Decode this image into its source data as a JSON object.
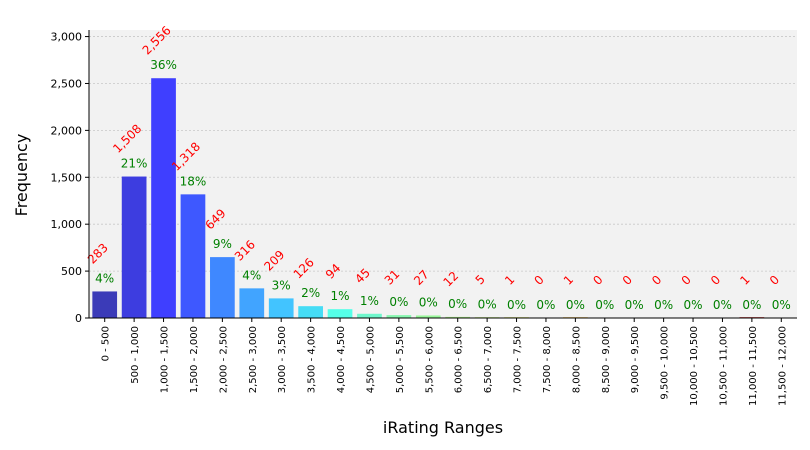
{
  "chart_data": {
    "type": "bar",
    "xlabel": "iRating Ranges",
    "ylabel": "Frequency",
    "ylim": [
      0,
      3070
    ],
    "yticks": [
      0,
      500,
      1000,
      1500,
      2000,
      2500,
      3000
    ],
    "ytick_labels": [
      "0",
      "500",
      "1,000",
      "1,500",
      "2,000",
      "2,500",
      "3,000"
    ],
    "grid": true,
    "categories": [
      "0 - 500",
      "500 - 1,000",
      "1,000 - 1,500",
      "1,500 - 2,000",
      "2,000 - 2,500",
      "2,500 - 3,000",
      "3,000 - 3,500",
      "3,500 - 4,000",
      "4,000 - 4,500",
      "4,500 - 5,000",
      "5,000 - 5,500",
      "5,500 - 6,000",
      "6,000 - 6,500",
      "6,500 - 7,000",
      "7,000 - 7,500",
      "7,500 - 8,000",
      "8,000 - 8,500",
      "8,500 - 9,000",
      "9,000 - 9,500",
      "9,500 - 10,000",
      "10,000 - 10,500",
      "10,500 - 11,000",
      "11,000 - 11,500",
      "11,500 - 12,000"
    ],
    "values": [
      283,
      1508,
      2556,
      1318,
      649,
      316,
      209,
      126,
      94,
      45,
      31,
      27,
      12,
      5,
      1,
      0,
      1,
      0,
      0,
      0,
      0,
      0,
      1,
      0
    ],
    "count_labels": [
      "283",
      "1,508",
      "2,556",
      "1,318",
      "649",
      "316",
      "209",
      "126",
      "94",
      "45",
      "31",
      "27",
      "12",
      "5",
      "1",
      "0",
      "1",
      "0",
      "0",
      "0",
      "0",
      "0",
      "1",
      "0"
    ],
    "percent_labels": [
      "4%",
      "21%",
      "36%",
      "18%",
      "9%",
      "4%",
      "3%",
      "2%",
      "1%",
      "1%",
      "0%",
      "0%",
      "0%",
      "0%",
      "0%",
      "0%",
      "0%",
      "0%",
      "0%",
      "0%",
      "0%",
      "0%",
      "0%",
      "0%"
    ],
    "bar_colors": [
      "#3b3bb8",
      "#3d3de0",
      "#3f3fff",
      "#3e58ff",
      "#3f88ff",
      "#41a4ff",
      "#42c4ff",
      "#45dcf5",
      "#55ffe8",
      "#6ff7cc",
      "#88f7b0",
      "#98f79a",
      "#aef78a",
      "#c4f578",
      "#dde865",
      "#ecd85a",
      "#f5c04e",
      "#f7a244",
      "#f78438",
      "#f5662e",
      "#f04824",
      "#e2301c",
      "#c21414",
      "#8b0000"
    ],
    "count_label_color": "#ff0000",
    "percent_label_color": "#008000",
    "plot_background": "#f2f2f2"
  }
}
